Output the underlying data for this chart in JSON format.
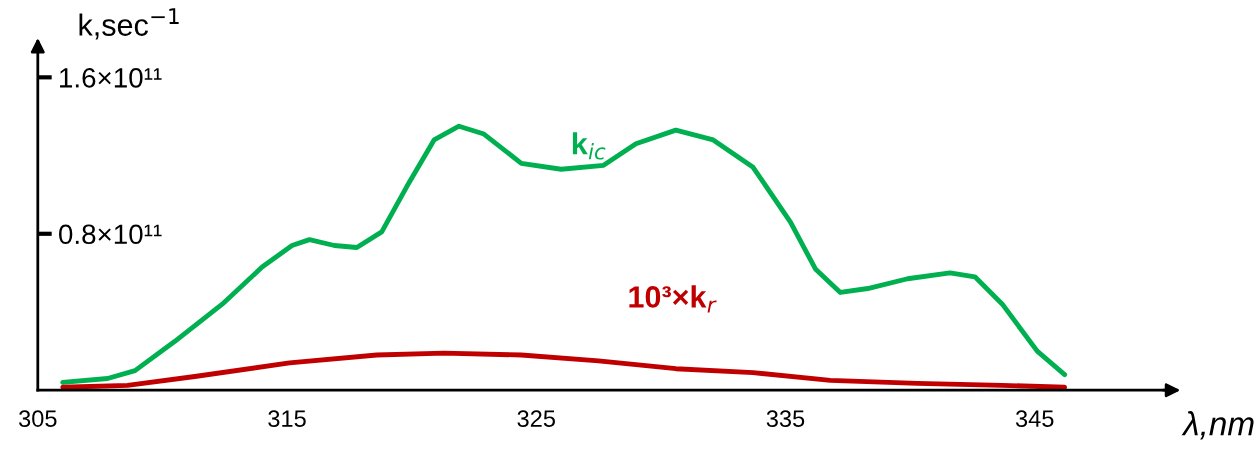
{
  "chart_data": {
    "type": "line",
    "xlabel": "λ,nm",
    "ylabel": "k,sec$^{−1}$",
    "xlim": [
      305,
      350.5
    ],
    "xticks": [
      305,
      315,
      325,
      335,
      345
    ],
    "ylim": [
      0,
      178000000000.0
    ],
    "yticks": [
      {
        "value": 80000000000.0,
        "label": "0.8×10¹¹"
      },
      {
        "value": 160000000000.0,
        "label": "1.6×10¹¹"
      }
    ],
    "grid": false,
    "legend": false,
    "marker": "none",
    "line_style": "solid",
    "series": [
      {
        "name": "k$_{ic}$",
        "color": "#00b050",
        "x": [
          306.0,
          307.8,
          308.9,
          310.5,
          312.4,
          314.0,
          315.2,
          315.9,
          316.9,
          317.8,
          318.8,
          319.8,
          320.9,
          321.9,
          322.9,
          324.4,
          326.0,
          327.7,
          329.0,
          330.6,
          332.1,
          333.7,
          335.2,
          336.2,
          337.2,
          338.3,
          339.9,
          341.6,
          342.6,
          343.7,
          345.1,
          346.2
        ],
        "values": [
          4000000000.0,
          6000000000.0,
          10000000000.0,
          25000000000.0,
          44000000000.0,
          63000000000.0,
          74000000000.0,
          77000000000.0,
          74000000000.0,
          73000000000.0,
          81000000000.0,
          104000000000.0,
          128000000000.0,
          135000000000.0,
          131000000000.0,
          116000000000.0,
          113000000000.0,
          115000000000.0,
          126000000000.0,
          133000000000.0,
          128000000000.0,
          114000000000.0,
          86000000000.0,
          62000000000.0,
          50000000000.0,
          52000000000.0,
          57000000000.0,
          60000000000.0,
          58000000000.0,
          44000000000.0,
          20000000000.0,
          8000000000.0
        ]
      },
      {
        "name": "10³×k$_{r}$",
        "color": "#c00000",
        "x": [
          306.0,
          308.6,
          311.3,
          315.1,
          318.6,
          321.3,
          324.4,
          327.5,
          330.6,
          333.7,
          336.8,
          340.3,
          343.7,
          346.2
        ],
        "values": [
          1500000000.0,
          2500000000.0,
          7000000000.0,
          14000000000.0,
          18000000000.0,
          19000000000.0,
          18000000000.0,
          15000000000.0,
          11000000000.0,
          9000000000.0,
          5000000000.0,
          3500000000.0,
          2500000000.0,
          1500000000.0
        ]
      }
    ]
  }
}
